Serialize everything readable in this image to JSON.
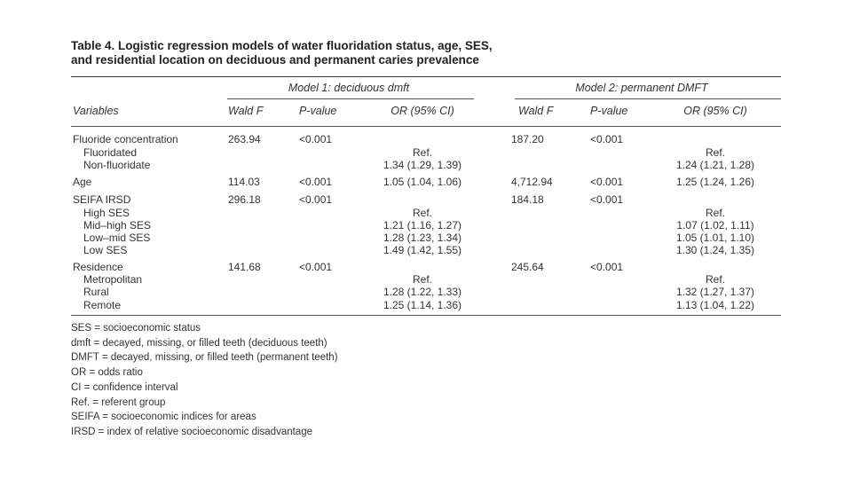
{
  "caption": {
    "line1": "Table 4. Logistic regression models of water fluoridation status, age, SES,",
    "line2": "and residential location on deciduous and permanent caries prevalence"
  },
  "models": {
    "model1": "Model 1: deciduous dmft",
    "model2": "Model 2: permanent DMFT"
  },
  "headers": {
    "variables": "Variables",
    "m1_wald": "Wald F",
    "m1_p": "P-value",
    "m1_or": "OR (95% CI)",
    "m2_wald": "Wald F",
    "m2_p": "P-value",
    "m2_or": "OR (95% CI)"
  },
  "rows": [
    {
      "label": "Fluoride concentration",
      "m1_wald": "263.94",
      "m1_p": "<0.001",
      "m1_or": "",
      "m2_wald": "187.20",
      "m2_p": "<0.001",
      "m2_or": ""
    },
    {
      "label": "Fluoridated",
      "m1_wald": "",
      "m1_p": "",
      "m1_or": "Ref.",
      "m2_wald": "",
      "m2_p": "",
      "m2_or": "Ref."
    },
    {
      "label": "Non-fluoridate",
      "m1_wald": "",
      "m1_p": "",
      "m1_or": "1.34 (1.29, 1.39)",
      "m2_wald": "",
      "m2_p": "",
      "m2_or": "1.24 (1.21, 1.28)"
    },
    {
      "label": "Age",
      "m1_wald": "114.03",
      "m1_p": "<0.001",
      "m1_or": "1.05 (1.04, 1.06)",
      "m2_wald": "4,712.94",
      "m2_p": "<0.001",
      "m2_or": "1.25 (1.24, 1.26)"
    },
    {
      "label": "SEIFA IRSD",
      "m1_wald": "296.18",
      "m1_p": "<0.001",
      "m1_or": "",
      "m2_wald": "184.18",
      "m2_p": "<0.001",
      "m2_or": ""
    },
    {
      "label": "High SES",
      "m1_wald": "",
      "m1_p": "",
      "m1_or": "Ref.",
      "m2_wald": "",
      "m2_p": "",
      "m2_or": "Ref."
    },
    {
      "label": "Mid–high SES",
      "m1_wald": "",
      "m1_p": "",
      "m1_or": "1.21 (1.16, 1.27)",
      "m2_wald": "",
      "m2_p": "",
      "m2_or": "1.07 (1.02, 1.11)"
    },
    {
      "label": "Low–mid SES",
      "m1_wald": "",
      "m1_p": "",
      "m1_or": "1.28 (1.23, 1.34)",
      "m2_wald": "",
      "m2_p": "",
      "m2_or": "1.05 (1.01, 1.10)"
    },
    {
      "label": "Low SES",
      "m1_wald": "",
      "m1_p": "",
      "m1_or": "1.49 (1.42, 1.55)",
      "m2_wald": "",
      "m2_p": "",
      "m2_or": "1.30 (1.24, 1.35)"
    },
    {
      "label": "Residence",
      "m1_wald": "141.68",
      "m1_p": "<0.001",
      "m1_or": "",
      "m2_wald": "245.64",
      "m2_p": "<0.001",
      "m2_or": ""
    },
    {
      "label": "Metropolitan",
      "m1_wald": "",
      "m1_p": "",
      "m1_or": "Ref.",
      "m2_wald": "",
      "m2_p": "",
      "m2_or": "Ref."
    },
    {
      "label": "Rural",
      "m1_wald": "",
      "m1_p": "",
      "m1_or": "1.28 (1.22, 1.33)",
      "m2_wald": "",
      "m2_p": "",
      "m2_or": "1.32 (1.27, 1.37)"
    },
    {
      "label": "Remote",
      "m1_wald": "",
      "m1_p": "",
      "m1_or": "1.25 (1.14, 1.36)",
      "m2_wald": "",
      "m2_p": "",
      "m2_or": "1.13 (1.04, 1.22)"
    }
  ],
  "footnotes": [
    "SES = socioeconomic status",
    "dmft = decayed, missing, or filled teeth (deciduous teeth)",
    "DMFT = decayed, missing, or filled teeth (permanent teeth)",
    "OR = odds ratio",
    "CI = confidence interval",
    "Ref. = referent group",
    "SEIFA = socioeconomic indices for areas",
    "IRSD = index of relative socioeconomic disadvantage"
  ]
}
